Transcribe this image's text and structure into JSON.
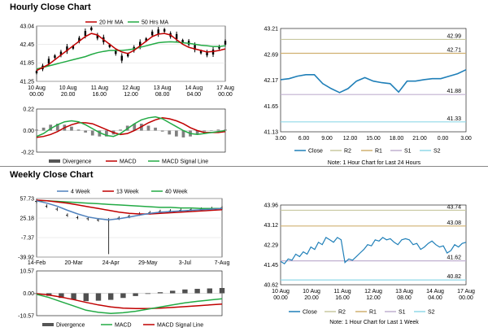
{
  "sections": {
    "hourly_title": "Hourly Close Chart",
    "weekly_title": "Weekly Close Chart"
  },
  "colors": {
    "price": "#000000",
    "ma_short": "#c00000",
    "ma_long": "#22aa44",
    "week4": "#4f81bd",
    "week13": "#c00000",
    "week40": "#22aa44",
    "macd": "#22aa44",
    "signal": "#c00000",
    "divergence": "#808080",
    "close": "#1f7fb8",
    "r2": "#c8c8a0",
    "r1": "#d0b070",
    "s1": "#c0b0d0",
    "s2": "#90d8e8"
  },
  "notes": {
    "hourly_note": "Note: 1 Hour Chart for Last 24 Hours",
    "weekly_note": "Note: 1 Hour Chart for Last 1 Week"
  },
  "chart_data": [
    {
      "id": "hourly_ma",
      "type": "line",
      "xticks": [
        "10 Aug\n00.00",
        "10 Aug\n20.00",
        "11 Aug\n16.00",
        "12 Aug\n12.00",
        "13 Aug\n08.00",
        "14 Aug\n04.00",
        "17 Aug\n00.00"
      ],
      "yticks": [
        "43.04",
        "42.45",
        "41.85",
        "41.25"
      ],
      "ylim": [
        41.25,
        43.04
      ],
      "legend": [
        "20 Hr MA",
        "50 Hrs MA"
      ],
      "series": [
        {
          "name": "Price",
          "values": [
            41.55,
            41.7,
            41.9,
            42.05,
            42.15,
            42.3,
            42.35,
            42.6,
            42.8,
            42.95,
            42.7,
            42.6,
            42.4,
            42.2,
            42.0,
            42.1,
            42.3,
            42.45,
            42.6,
            42.8,
            42.85,
            42.9,
            42.75,
            42.7,
            42.55,
            42.5,
            42.35,
            42.2,
            42.15,
            42.2,
            42.35,
            42.5
          ]
        },
        {
          "name": "20 Hr MA",
          "values": [
            41.6,
            41.7,
            41.8,
            41.95,
            42.1,
            42.25,
            42.4,
            42.55,
            42.7,
            42.8,
            42.75,
            42.6,
            42.45,
            42.3,
            42.2,
            42.15,
            42.25,
            42.4,
            42.55,
            42.7,
            42.78,
            42.8,
            42.75,
            42.6,
            42.45,
            42.35,
            42.3,
            42.25,
            42.2,
            42.22,
            42.25,
            42.3
          ]
        },
        {
          "name": "50 Hrs MA",
          "values": [
            41.65,
            41.7,
            41.75,
            41.8,
            41.85,
            41.9,
            41.95,
            42.0,
            42.05,
            42.12,
            42.18,
            42.22,
            42.25,
            42.25,
            42.25,
            42.27,
            42.3,
            42.35,
            42.4,
            42.45,
            42.5,
            42.52,
            42.53,
            42.52,
            42.5,
            42.48,
            42.45,
            42.42,
            42.4,
            42.38,
            42.38,
            42.4
          ]
        }
      ]
    },
    {
      "id": "hourly_macd",
      "type": "line",
      "yticks": [
        "0.22",
        "0.00",
        "-0.22"
      ],
      "ylim": [
        -0.22,
        0.22
      ],
      "legend": [
        "Divergence",
        "MACD",
        "MACD Signal Line"
      ],
      "series": [
        {
          "name": "MACD",
          "values": [
            -0.06,
            -0.03,
            0.02,
            0.06,
            0.09,
            0.1,
            0.09,
            0.06,
            0.02,
            -0.02,
            -0.05,
            -0.06,
            -0.03,
            0.02,
            0.07,
            0.11,
            0.13,
            0.14,
            0.12,
            0.08,
            0.04,
            0.0,
            -0.03,
            -0.04,
            -0.03,
            -0.02,
            -0.01,
            0.0
          ]
        },
        {
          "name": "MACD Signal Line",
          "values": [
            -0.07,
            -0.06,
            -0.04,
            -0.01,
            0.03,
            0.06,
            0.08,
            0.08,
            0.07,
            0.04,
            0.01,
            -0.02,
            -0.04,
            -0.03,
            0.0,
            0.04,
            0.08,
            0.11,
            0.13,
            0.12,
            0.1,
            0.07,
            0.03,
            0.0,
            -0.02,
            -0.02,
            -0.02,
            -0.01
          ]
        },
        {
          "name": "Divergence",
          "values": [
            0.01,
            0.03,
            0.06,
            0.07,
            0.06,
            0.04,
            0.01,
            -0.02,
            -0.05,
            -0.06,
            -0.06,
            -0.04,
            0.01,
            0.05,
            0.07,
            0.07,
            0.05,
            0.03,
            -0.01,
            -0.04,
            -0.06,
            -0.07,
            -0.06,
            -0.04,
            -0.01,
            0.0,
            0.01,
            0.01
          ]
        }
      ]
    },
    {
      "id": "hourly_close",
      "type": "line",
      "xticks": [
        "3.00",
        "6.00",
        "9.00",
        "12.00",
        "15.00",
        "18.00",
        "21.00",
        "0.00",
        "3.00"
      ],
      "yticks": [
        "43.21",
        "42.69",
        "42.17",
        "41.65",
        "41.13"
      ],
      "ylim": [
        41.13,
        43.21
      ],
      "levels": {
        "R2": 42.99,
        "R1": 42.71,
        "S1": 41.88,
        "S2": 41.33
      },
      "level_labels": [
        "42.99",
        "42.71",
        "41.88",
        "41.33"
      ],
      "legend": [
        "Close",
        "R2",
        "R1",
        "S1",
        "S2"
      ],
      "values": [
        42.18,
        42.2,
        42.25,
        42.28,
        42.28,
        42.1,
        42.0,
        41.92,
        42.0,
        42.15,
        42.22,
        42.15,
        42.12,
        42.1,
        41.93,
        42.15,
        42.15,
        42.18,
        42.2,
        42.2,
        42.25,
        42.3,
        42.38
      ]
    },
    {
      "id": "weekly_ma",
      "type": "line",
      "xticks": [
        "14-Feb",
        "20-Mar",
        "24-Apr",
        "29-May",
        "3-Jul",
        "7-Aug"
      ],
      "yticks": [
        "57.73",
        "25.18",
        "-7.37",
        "-39.92"
      ],
      "ylim": [
        -39.92,
        57.73
      ],
      "legend": [
        "4 Week",
        "13 Week",
        "40 Week"
      ],
      "series": [
        {
          "name": "Price",
          "values": [
            53,
            45,
            40,
            30,
            26,
            24,
            22,
            22,
            25,
            28,
            32,
            34,
            36,
            37,
            38,
            39,
            40,
            41,
            42
          ]
        },
        {
          "name": "4 Week",
          "values": [
            54,
            50,
            45,
            38,
            32,
            27,
            24,
            22,
            24,
            27,
            30,
            33,
            35,
            36,
            37,
            38,
            39,
            40,
            41
          ]
        },
        {
          "name": "13 Week",
          "values": [
            55,
            54,
            52,
            50,
            47,
            44,
            41,
            38,
            35,
            33,
            32,
            32,
            33,
            34,
            35,
            36,
            37,
            38,
            39
          ]
        },
        {
          "name": "40 Week",
          "values": [
            54,
            54,
            53,
            52,
            51,
            50,
            49,
            48,
            47,
            46,
            45,
            44,
            43,
            43,
            42,
            42,
            41,
            41,
            41
          ]
        }
      ]
    },
    {
      "id": "weekly_macd",
      "type": "line",
      "yticks": [
        "10.57",
        "0.00",
        "-10.57"
      ],
      "ylim": [
        -10.57,
        10.57
      ],
      "legend": [
        "Divergence",
        "MACD",
        "MACD Signal Line"
      ],
      "series": [
        {
          "name": "MACD",
          "values": [
            -0.5,
            -2,
            -4,
            -6,
            -8,
            -9,
            -9.5,
            -9.2,
            -8.5,
            -7.5,
            -6.5,
            -5.5,
            -4.5,
            -3.8,
            -3.2,
            -2.6
          ]
        },
        {
          "name": "MACD Signal Line",
          "values": [
            -0.2,
            -0.8,
            -1.8,
            -3,
            -4.3,
            -5.5,
            -6.4,
            -7,
            -7.2,
            -7.2,
            -7,
            -6.7,
            -6.3,
            -5.9,
            -5.5,
            -5.1
          ]
        },
        {
          "name": "Divergence",
          "values": [
            -0.3,
            -1.2,
            -2.2,
            -3,
            -3.7,
            -3.5,
            -3.1,
            -2.2,
            -1.3,
            -0.3,
            0.5,
            1.2,
            1.8,
            2.1,
            2.3,
            2.5
          ]
        }
      ]
    },
    {
      "id": "weekly_close",
      "type": "line",
      "xticks": [
        "10 Aug\n00.00",
        "10 Aug\n20.00",
        "11 Aug\n16.00",
        "12 Aug\n12.00",
        "13 Aug\n08.00",
        "14 Aug\n04.00",
        "17 Aug\n00.00"
      ],
      "yticks": [
        "43.96",
        "43.12",
        "42.29",
        "41.45",
        "40.62"
      ],
      "ylim": [
        40.62,
        43.96
      ],
      "levels": {
        "R2": 43.74,
        "R1": 43.08,
        "S1": 41.62,
        "S2": 40.82
      },
      "level_labels": [
        "43.74",
        "43.08",
        "41.62",
        "40.82"
      ],
      "legend": [
        "Close",
        "R2",
        "R1",
        "S1",
        "S2"
      ],
      "values": [
        41.6,
        41.5,
        41.7,
        41.65,
        41.9,
        41.8,
        42.0,
        41.9,
        42.2,
        42.1,
        42.4,
        42.3,
        42.6,
        42.5,
        42.4,
        42.6,
        42.5,
        41.55,
        41.7,
        41.65,
        41.8,
        41.95,
        42.1,
        42.3,
        42.25,
        42.5,
        42.45,
        42.6,
        42.5,
        42.55,
        42.4,
        42.3,
        42.5,
        42.55,
        42.5,
        42.3,
        42.35,
        42.1,
        42.2,
        42.35,
        42.45,
        42.3,
        42.2,
        42.25,
        41.95,
        42.05,
        42.3,
        42.2,
        42.35,
        42.4
      ]
    }
  ]
}
